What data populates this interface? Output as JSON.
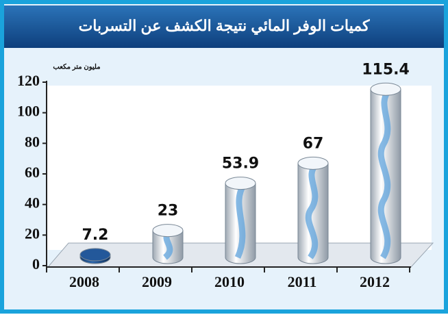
{
  "chart_data": {
    "type": "bar",
    "title": "كميات الوفر المائي نتيجة الكشف عن التسربات",
    "y_label": "مليون متر مكعب",
    "categories": [
      "2008",
      "2009",
      "2010",
      "2011",
      "2012"
    ],
    "values": [
      7.2,
      23,
      53.9,
      67,
      115.4
    ],
    "colors": [
      "#1d4f8c",
      "#5fa3dc",
      "#5fa3dc",
      "#5fa3dc",
      "#5fa3dc"
    ],
    "ylim": [
      0,
      120
    ],
    "yticks": [
      0,
      20,
      40,
      60,
      80,
      100,
      120
    ],
    "grid": false
  }
}
